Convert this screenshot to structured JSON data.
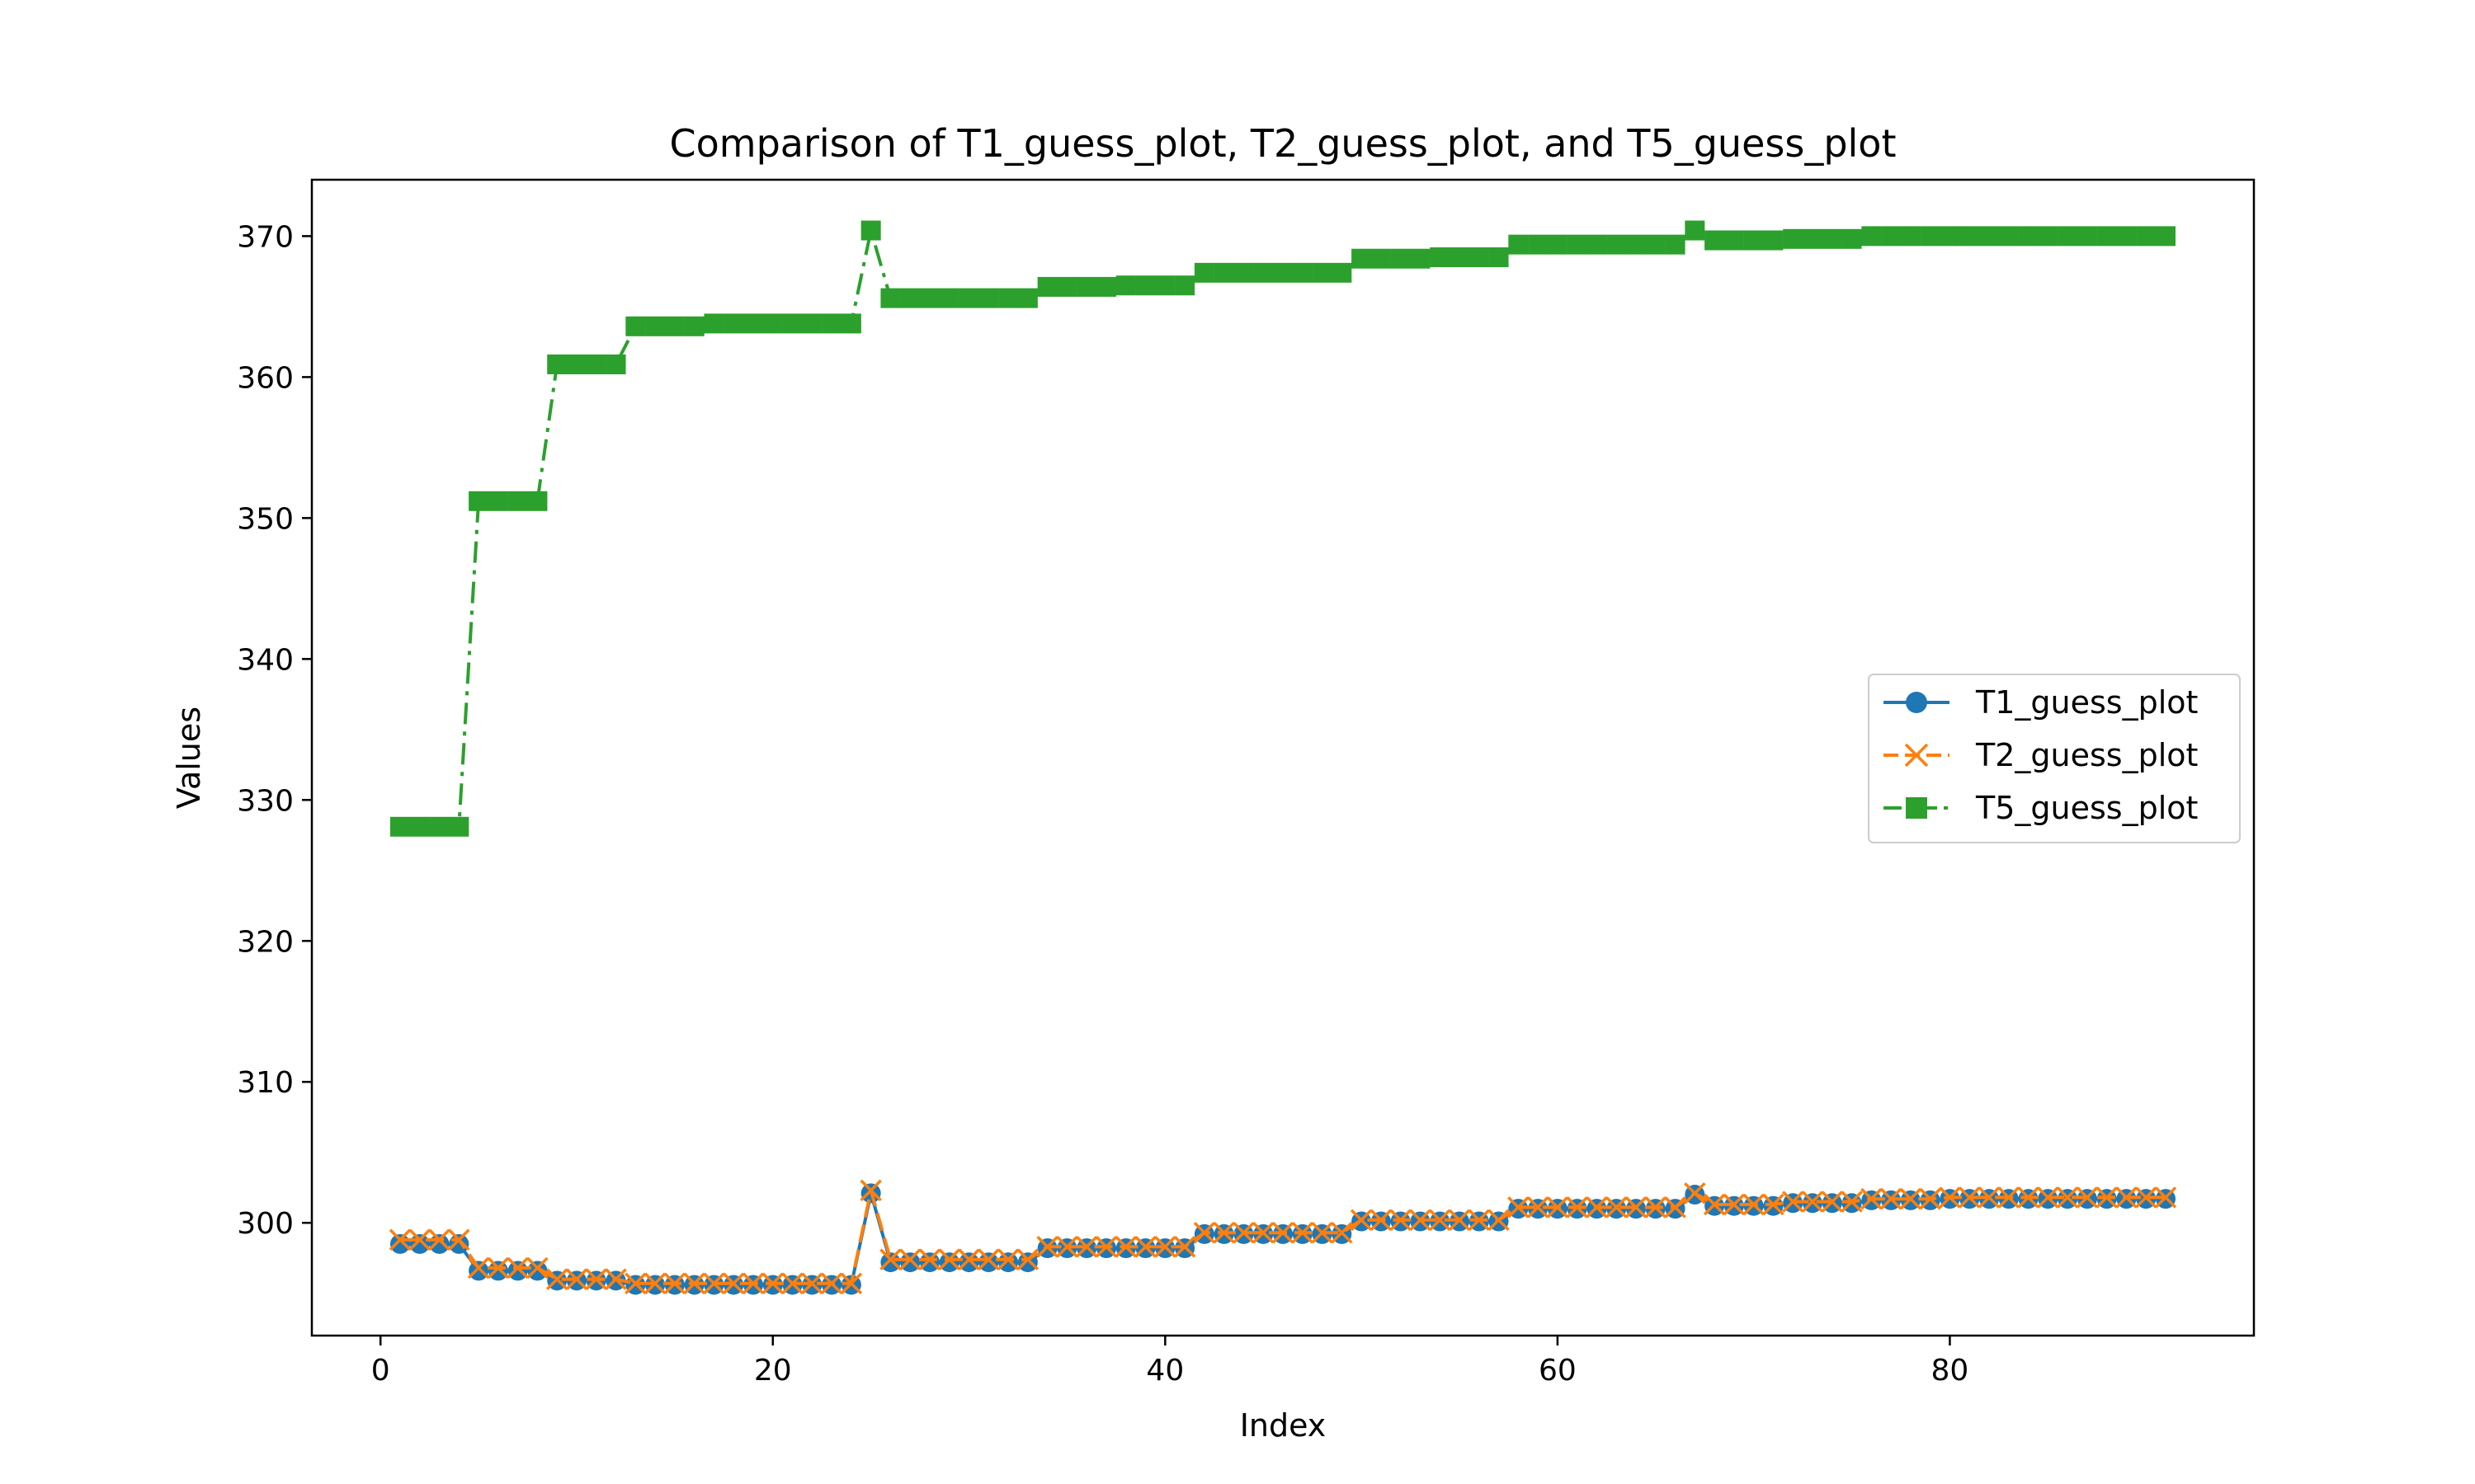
{
  "chart_data": {
    "type": "line",
    "title": "Comparison of T1_guess_plot, T2_guess_plot, and T5_guess_plot",
    "xlabel": "Index",
    "ylabel": "Values",
    "xlim": [
      -3.5,
      95.5
    ],
    "ylim": [
      292,
      374
    ],
    "xticks": [
      0,
      20,
      40,
      60,
      80
    ],
    "yticks": [
      300,
      310,
      320,
      330,
      340,
      350,
      360,
      370
    ],
    "legend_position": "center-right",
    "grid": false,
    "series": [
      {
        "name": "T1_guess_plot",
        "color": "#1f77b4",
        "linestyle": "solid",
        "marker": "circle",
        "x": [
          1,
          2,
          3,
          4,
          5,
          6,
          7,
          8,
          9,
          10,
          11,
          12,
          13,
          14,
          15,
          16,
          17,
          18,
          19,
          20,
          21,
          22,
          23,
          24,
          25,
          26,
          27,
          28,
          29,
          30,
          31,
          32,
          33,
          34,
          35,
          36,
          37,
          38,
          39,
          40,
          41,
          42,
          43,
          44,
          45,
          46,
          47,
          48,
          49,
          50,
          51,
          52,
          53,
          54,
          55,
          56,
          57,
          58,
          59,
          60,
          61,
          62,
          63,
          64,
          65,
          66,
          67,
          68,
          69,
          70,
          71,
          72,
          73,
          74,
          75,
          76,
          77,
          78,
          79,
          80,
          81,
          82,
          83,
          84,
          85,
          86,
          87,
          88,
          89,
          90,
          91
        ],
        "values": [
          298.5,
          298.5,
          298.5,
          298.5,
          296.6,
          296.6,
          296.6,
          296.6,
          295.9,
          295.9,
          295.9,
          295.9,
          295.6,
          295.6,
          295.6,
          295.6,
          295.6,
          295.6,
          295.6,
          295.6,
          295.6,
          295.6,
          295.6,
          295.6,
          302.1,
          297.2,
          297.2,
          297.2,
          297.2,
          297.2,
          297.2,
          297.2,
          297.2,
          298.2,
          298.2,
          298.2,
          298.2,
          298.2,
          298.2,
          298.2,
          298.2,
          299.2,
          299.2,
          299.2,
          299.2,
          299.2,
          299.2,
          299.2,
          299.2,
          300.1,
          300.1,
          300.1,
          300.1,
          300.1,
          300.1,
          300.1,
          300.1,
          301.0,
          301.0,
          301.0,
          301.0,
          301.0,
          301.0,
          301.0,
          301.0,
          301.0,
          302.0,
          301.2,
          301.2,
          301.2,
          301.2,
          301.4,
          301.4,
          301.4,
          301.4,
          301.6,
          301.6,
          301.6,
          301.6,
          301.7,
          301.7,
          301.7,
          301.7,
          301.7,
          301.7,
          301.7,
          301.7,
          301.7,
          301.7,
          301.7,
          301.7
        ]
      },
      {
        "name": "T2_guess_plot",
        "color": "#ff7f0e",
        "linestyle": "dashed",
        "marker": "x",
        "x": [
          1,
          2,
          3,
          4,
          5,
          6,
          7,
          8,
          9,
          10,
          11,
          12,
          13,
          14,
          15,
          16,
          17,
          18,
          19,
          20,
          21,
          22,
          23,
          24,
          25,
          26,
          27,
          28,
          29,
          30,
          31,
          32,
          33,
          34,
          35,
          36,
          37,
          38,
          39,
          40,
          41,
          42,
          43,
          44,
          45,
          46,
          47,
          48,
          49,
          50,
          51,
          52,
          53,
          54,
          55,
          56,
          57,
          58,
          59,
          60,
          61,
          62,
          63,
          64,
          65,
          66,
          67,
          68,
          69,
          70,
          71,
          72,
          73,
          74,
          75,
          76,
          77,
          78,
          79,
          80,
          81,
          82,
          83,
          84,
          85,
          86,
          87,
          88,
          89,
          90,
          91
        ],
        "values": [
          298.8,
          298.8,
          298.8,
          298.8,
          296.8,
          296.8,
          296.8,
          296.8,
          296.0,
          296.0,
          296.0,
          296.0,
          295.7,
          295.7,
          295.7,
          295.7,
          295.7,
          295.7,
          295.7,
          295.7,
          295.7,
          295.7,
          295.7,
          295.7,
          302.3,
          297.4,
          297.4,
          297.4,
          297.4,
          297.4,
          297.4,
          297.4,
          297.4,
          298.3,
          298.3,
          298.3,
          298.3,
          298.3,
          298.3,
          298.3,
          298.3,
          299.3,
          299.3,
          299.3,
          299.3,
          299.3,
          299.3,
          299.3,
          299.3,
          300.2,
          300.2,
          300.2,
          300.2,
          300.2,
          300.2,
          300.2,
          300.2,
          301.1,
          301.1,
          301.1,
          301.1,
          301.1,
          301.1,
          301.1,
          301.1,
          301.1,
          302.1,
          301.3,
          301.3,
          301.3,
          301.3,
          301.5,
          301.5,
          301.5,
          301.5,
          301.7,
          301.7,
          301.7,
          301.7,
          301.8,
          301.8,
          301.8,
          301.8,
          301.8,
          301.8,
          301.8,
          301.8,
          301.8,
          301.8,
          301.8,
          301.8
        ]
      },
      {
        "name": "T5_guess_plot",
        "color": "#2ca02c",
        "linestyle": "dashdot",
        "marker": "square",
        "x": [
          1,
          2,
          3,
          4,
          5,
          6,
          7,
          8,
          9,
          10,
          11,
          12,
          13,
          14,
          15,
          16,
          17,
          18,
          19,
          20,
          21,
          22,
          23,
          24,
          25,
          26,
          27,
          28,
          29,
          30,
          31,
          32,
          33,
          34,
          35,
          36,
          37,
          38,
          39,
          40,
          41,
          42,
          43,
          44,
          45,
          46,
          47,
          48,
          49,
          50,
          51,
          52,
          53,
          54,
          55,
          56,
          57,
          58,
          59,
          60,
          61,
          62,
          63,
          64,
          65,
          66,
          67,
          68,
          69,
          70,
          71,
          72,
          73,
          74,
          75,
          76,
          77,
          78,
          79,
          80,
          81,
          82,
          83,
          84,
          85,
          86,
          87,
          88,
          89,
          90,
          91
        ],
        "values": [
          328.1,
          328.1,
          328.1,
          328.1,
          351.2,
          351.2,
          351.2,
          351.2,
          360.9,
          360.9,
          360.9,
          360.9,
          363.6,
          363.6,
          363.6,
          363.6,
          363.8,
          363.8,
          363.8,
          363.8,
          363.8,
          363.8,
          363.8,
          363.8,
          370.4,
          365.6,
          365.6,
          365.6,
          365.6,
          365.6,
          365.6,
          365.6,
          365.6,
          366.4,
          366.4,
          366.4,
          366.4,
          366.5,
          366.5,
          366.5,
          366.5,
          367.4,
          367.4,
          367.4,
          367.4,
          367.4,
          367.4,
          367.4,
          367.4,
          368.4,
          368.4,
          368.4,
          368.4,
          368.5,
          368.5,
          368.5,
          368.5,
          369.4,
          369.4,
          369.4,
          369.4,
          369.4,
          369.4,
          369.4,
          369.4,
          369.4,
          370.4,
          369.7,
          369.7,
          369.7,
          369.7,
          369.8,
          369.8,
          369.8,
          369.8,
          370.0,
          370.0,
          370.0,
          370.0,
          370.0,
          370.0,
          370.0,
          370.0,
          370.0,
          370.0,
          370.0,
          370.0,
          370.0,
          370.0,
          370.0,
          370.0
        ]
      }
    ]
  }
}
